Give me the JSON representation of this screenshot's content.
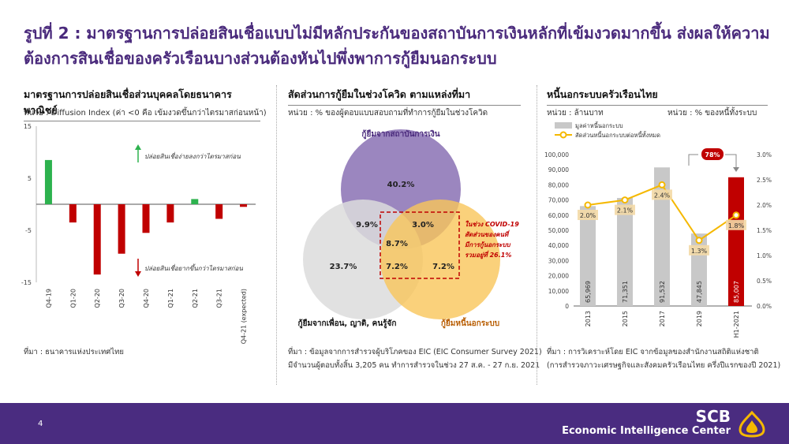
{
  "title": "รูปที่ 2 : มาตรฐานการปล่อยสินเชื่อแบบไม่มีหลักประกันของสถาบันการเงินหลักที่เข้มงวดมากขึ้น ส่งผลให้ความต้องการสินเชื่อของครัวเรือนบางส่วนต้องหันไปพึ่งพาการกู้ยืมนอกระบบ",
  "panels": {
    "left": {
      "title": "มาตรฐานการปล่อยสินเชื่อส่วนบุคคลโดยธนาคารพาณิชย์",
      "unit": "หน่วย : Diffusion Index (ค่า <0 คือ เข้มงวดขึ้นกว่าไตรมาสก่อนหน้า)",
      "annotation_up": "ปล่อยสินเชื่อง่ายลงกว่าไตรมาสก่อน",
      "annotation_down": "ปล่อยสินเชื่อยากขึ้นกว่าไตรมาสก่อน",
      "source": "ที่มา : ธนาคารแห่งประเทศไทย"
    },
    "middle": {
      "title": "สัดส่วนการกู้ยืมในช่วงโควิด ตามแหล่งที่มา",
      "unit": "หน่วย : % ของผู้ตอบแบบสอบถามที่ทำการกู้ยืมในช่วงโควิด",
      "circle_labels": {
        "financial": "กู้ยืมจากสถาบันการเงิน",
        "friends": "กู้ยืมจากเพื่อน, ญาติ, คนรู้จัก",
        "informal": "กู้ยืมหนี้นอกระบบ"
      },
      "region_values": {
        "financial_only": "40.2%",
        "friends_only": "23.7%",
        "informal_only": "7.2%",
        "fin_friends": "9.9%",
        "fin_informal": "3.0%",
        "all_three": "8.7%",
        "friends_informal": "7.2%"
      },
      "callout": [
        "ในช่วง COVID-19",
        "สัดส่วนของคนที่",
        "มีการกู้นอกระบบ",
        "รวมอยู่ที่ 26.1%"
      ],
      "source_line1": "ที่มา : ข้อมูลจากการสำรวจผู้บริโภคของ EIC (EIC Consumer Survey 2021)",
      "source_line2": "มีจำนวนผู้ตอบทั้งสิ้น 3,205 คน ทำการสำรวจในช่วง 27 ส.ค. - 27 ก.ย. 2021"
    },
    "right": {
      "title": "หนี้นอกระบบครัวเรือนไทย",
      "unit_left": "หน่วย : ล้านบาท",
      "unit_right": "หน่วย : % ของหนี้ทั้งระบบ",
      "legend_bar": "มูลค่าหนี้นอกระบบ",
      "legend_line": "สัดส่วนหนี้นอกระบบต่อหนี้ทั้งหมด",
      "badge": "78%",
      "source_line1": "ที่มา : การวิเคราะห์โดย EIC จากข้อมูลของสำนักงานสถิติแห่งชาติ",
      "source_line2": "(การสำรวจภาวะเศรษฐกิจและสังคมครัวเรือนไทย ครึ่งปีแรกของปี 2021)"
    }
  },
  "colors": {
    "title": "#4a2a7c",
    "positive_bar": "#2db24e",
    "negative_bar": "#c00000",
    "gray_bar": "#c8c8c8",
    "highlight_bar": "#c00000",
    "line": "#f5b800",
    "circle_financial": "#9b86bf",
    "circle_friends": "#dcdcdc",
    "circle_informal": "#f9c65a",
    "footer": "#4a2c80"
  },
  "chart_data": [
    {
      "type": "bar",
      "categories": [
        "Q4-19",
        "Q1-20",
        "Q2-20",
        "Q3-20",
        "Q4-20",
        "Q1-21",
        "Q2-21",
        "Q3-21",
        "Q4-21 (expected)"
      ],
      "values": [
        8.5,
        -3.5,
        -13.5,
        -9.5,
        -5.5,
        -3.5,
        1.0,
        -2.8,
        -0.5
      ],
      "ylim": [
        -15,
        15
      ],
      "yticks": [
        15,
        5,
        -5,
        -15
      ],
      "grid": false
    },
    {
      "type": "bar",
      "categories": [
        "2013",
        "2015",
        "2017",
        "2019",
        "H1-2021"
      ],
      "series": [
        {
          "name": "มูลค่าหนี้นอกระบบ",
          "values": [
            65969,
            71351,
            91532,
            47845,
            85007
          ],
          "labels": [
            "65,969",
            "71,351",
            "91,532",
            "47,845",
            "85,007"
          ]
        },
        {
          "name": "สัดส่วนหนี้นอกระบบต่อหนี้ทั้งหมด",
          "values": [
            2.0,
            2.1,
            2.4,
            1.3,
            1.8
          ],
          "labels": [
            "2.0%",
            "2.1%",
            "2.4%",
            "1.3%",
            "1.8%"
          ],
          "axis": "right"
        }
      ],
      "ylim": [
        0,
        100000
      ],
      "yticks": [
        "0",
        "10,000",
        "20,000",
        "30,000",
        "40,000",
        "50,000",
        "60,000",
        "70,000",
        "80,000",
        "90,000",
        "100,000"
      ],
      "y2lim": [
        0,
        3.0
      ],
      "y2ticks": [
        "0.0%",
        "0.5%",
        "1.0%",
        "1.5%",
        "2.0%",
        "2.5%",
        "3.0%"
      ],
      "grid": false,
      "legend": "top-left"
    }
  ]
}
